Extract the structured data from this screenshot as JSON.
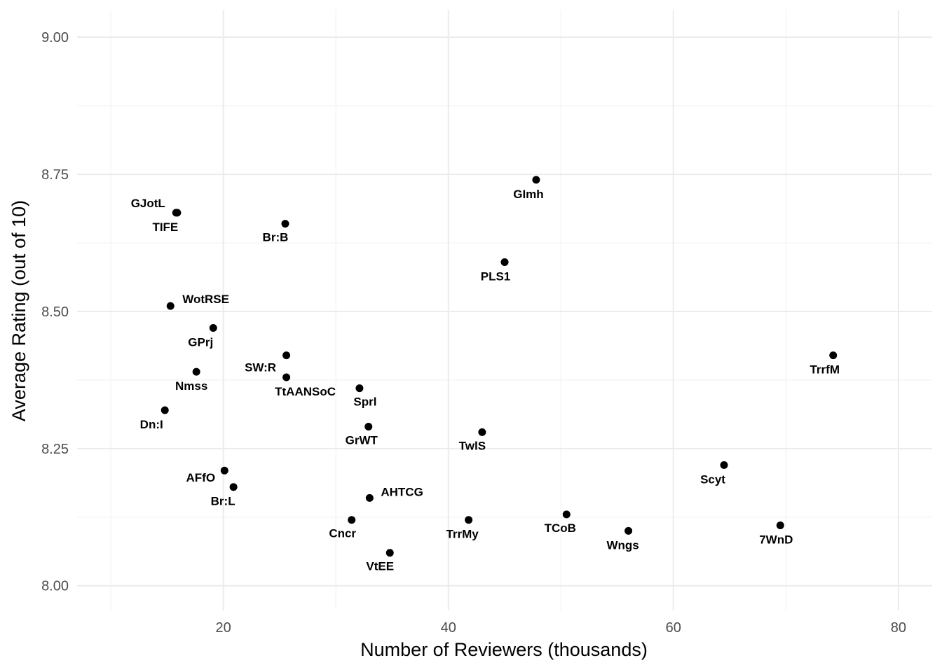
{
  "chart_data": {
    "type": "scatter",
    "title": "",
    "xlabel": "Number of Reviewers (thousands)",
    "ylabel": "Average Rating (out of 10)",
    "xlim": [
      7,
      83
    ],
    "ylim": [
      7.955,
      9.05
    ],
    "x_ticks": [
      20,
      40,
      60,
      80
    ],
    "x_tick_labels": [
      "20",
      "40",
      "60",
      "80"
    ],
    "y_ticks": [
      8.0,
      8.25,
      8.5,
      8.75,
      9.0
    ],
    "y_tick_labels": [
      "8.00",
      "8.25",
      "8.50",
      "8.75",
      "9.00"
    ],
    "grid": true,
    "point_color": "#000000",
    "points": [
      {
        "label": "GJotL",
        "x": 15.8,
        "y": 8.68
      },
      {
        "label": "TIFE",
        "x": 15.9,
        "y": 8.68
      },
      {
        "label": "Br:B",
        "x": 25.5,
        "y": 8.66
      },
      {
        "label": "GImh",
        "x": 47.8,
        "y": 8.74
      },
      {
        "label": "PLS1",
        "x": 45.0,
        "y": 8.59
      },
      {
        "label": "WotRSE",
        "x": 15.3,
        "y": 8.51
      },
      {
        "label": "GPrj",
        "x": 19.1,
        "y": 8.47
      },
      {
        "label": "SW:R",
        "x": 25.6,
        "y": 8.42
      },
      {
        "label": "TtAANSoC",
        "x": 25.6,
        "y": 8.38
      },
      {
        "label": "Nmss",
        "x": 17.6,
        "y": 8.39
      },
      {
        "label": "Sprl",
        "x": 32.1,
        "y": 8.36
      },
      {
        "label": "Dn:I",
        "x": 14.8,
        "y": 8.32
      },
      {
        "label": "GrWT",
        "x": 32.9,
        "y": 8.29
      },
      {
        "label": "TwlS",
        "x": 43.0,
        "y": 8.28
      },
      {
        "label": "TrrfM",
        "x": 74.2,
        "y": 8.42
      },
      {
        "label": "AFfO",
        "x": 20.1,
        "y": 8.21
      },
      {
        "label": "Br:L",
        "x": 20.9,
        "y": 8.18
      },
      {
        "label": "AHTCG",
        "x": 33.0,
        "y": 8.16
      },
      {
        "label": "Cncr",
        "x": 31.4,
        "y": 8.12
      },
      {
        "label": "TrrMy",
        "x": 41.8,
        "y": 8.12
      },
      {
        "label": "VtEE",
        "x": 34.8,
        "y": 8.06
      },
      {
        "label": "TCoB",
        "x": 50.5,
        "y": 8.13
      },
      {
        "label": "Wngs",
        "x": 56.0,
        "y": 8.1
      },
      {
        "label": "Scyt",
        "x": 64.5,
        "y": 8.22
      },
      {
        "label": "7WnD",
        "x": 69.5,
        "y": 8.11
      }
    ]
  }
}
